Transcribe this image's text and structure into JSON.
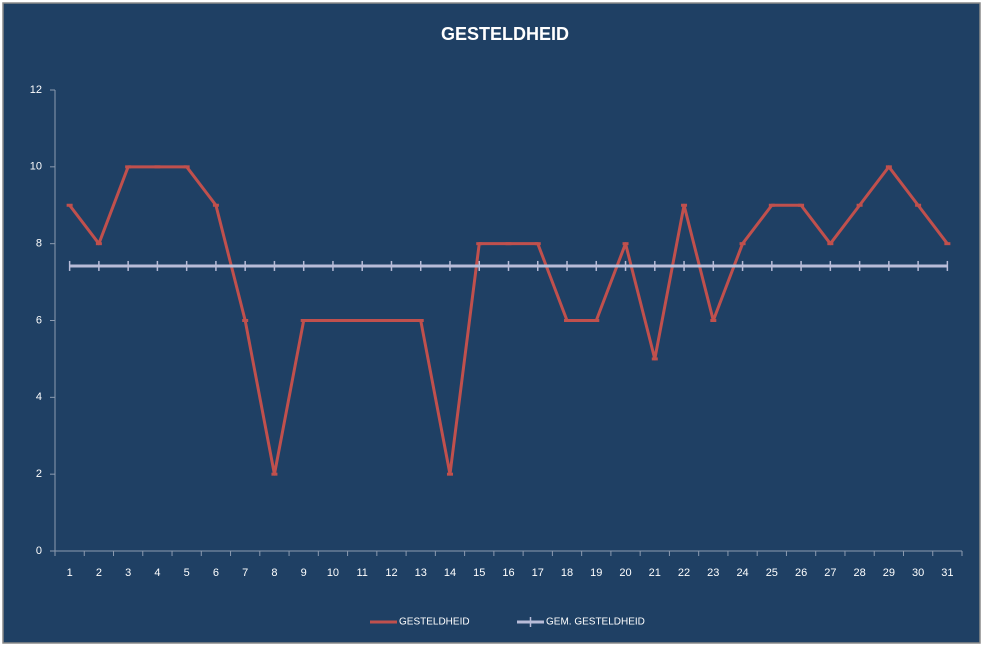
{
  "chart_data": {
    "type": "line",
    "title": "GESTELDHEID",
    "categories": [
      "1",
      "2",
      "3",
      "4",
      "5",
      "6",
      "7",
      "8",
      "9",
      "10",
      "11",
      "12",
      "13",
      "14",
      "15",
      "16",
      "17",
      "18",
      "19",
      "20",
      "21",
      "22",
      "23",
      "24",
      "25",
      "26",
      "27",
      "28",
      "29",
      "30",
      "31"
    ],
    "series": [
      {
        "name": "GESTELDHEID",
        "color": "#c0504d",
        "values": [
          9,
          8,
          10,
          10,
          10,
          9,
          6,
          2,
          6,
          6,
          6,
          6,
          6,
          2,
          8,
          8,
          8,
          6,
          6,
          8,
          5,
          9,
          6,
          8,
          9,
          9,
          8,
          9,
          10,
          9,
          8
        ]
      },
      {
        "name": "GEM. GESTELDHEID",
        "color": "#b8bcd8",
        "values": [
          7.42,
          7.42,
          7.42,
          7.42,
          7.42,
          7.42,
          7.42,
          7.42,
          7.42,
          7.42,
          7.42,
          7.42,
          7.42,
          7.42,
          7.42,
          7.42,
          7.42,
          7.42,
          7.42,
          7.42,
          7.42,
          7.42,
          7.42,
          7.42,
          7.42,
          7.42,
          7.42,
          7.42,
          7.42,
          7.42,
          7.42
        ]
      }
    ],
    "ylim": [
      0,
      12
    ],
    "yticks": [
      0,
      2,
      4,
      6,
      8,
      10,
      12
    ],
    "grid": false,
    "legend": "bottom"
  }
}
